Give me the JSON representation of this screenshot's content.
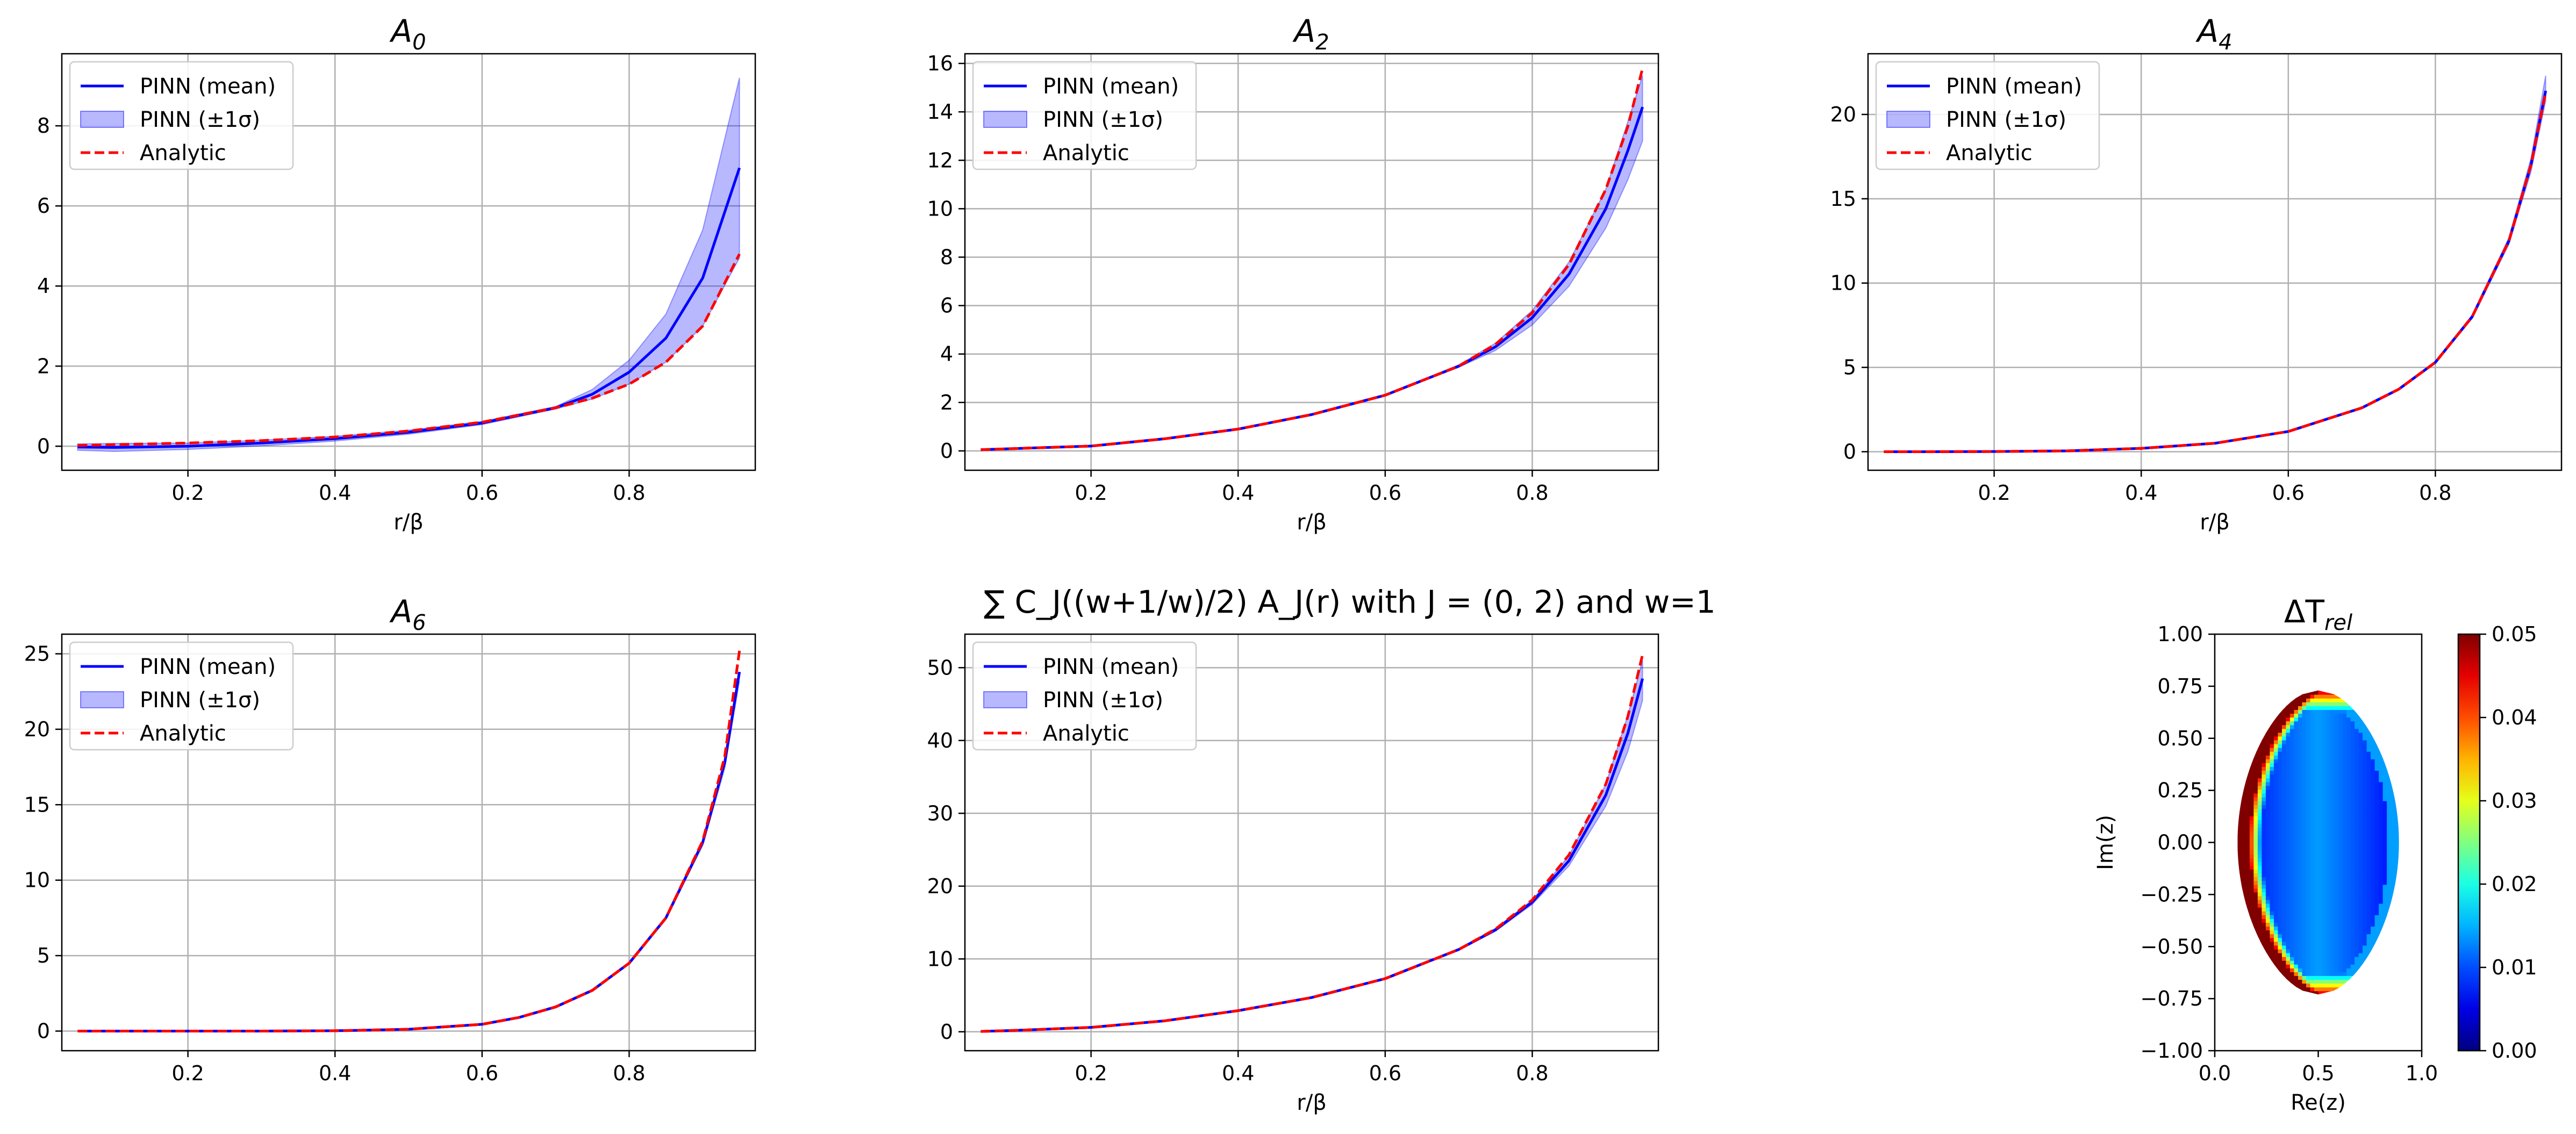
{
  "chart_data": [
    {
      "type": "line",
      "title_base": "A",
      "title_sub": "0",
      "xlabel": "r/β",
      "ylabel": "",
      "xlim": [
        0.0285,
        0.9715
      ],
      "ylim": [
        -0.6,
        9.8
      ],
      "xticks": [
        0.2,
        0.4,
        0.6,
        0.8
      ],
      "xtick_labels": [
        "0.2",
        "0.4",
        "0.6",
        "0.8"
      ],
      "yticks": [
        0,
        2,
        4,
        6,
        8
      ],
      "ytick_labels": [
        "0",
        "2",
        "4",
        "6",
        "8"
      ],
      "grid": true,
      "legend_loc": "upper left",
      "x": [
        0.05,
        0.1,
        0.2,
        0.3,
        0.4,
        0.5,
        0.6,
        0.7,
        0.75,
        0.8,
        0.85,
        0.9,
        0.95
      ],
      "series": [
        {
          "name": "PINN (mean)",
          "kind": "line",
          "color": "#0000ff",
          "dash": "solid",
          "values": [
            -0.02,
            -0.03,
            0.0,
            0.08,
            0.19,
            0.35,
            0.58,
            0.96,
            1.3,
            1.85,
            2.7,
            4.2,
            6.95
          ]
        },
        {
          "name": "PINN (±1σ)",
          "kind": "band",
          "color": "#0000ff",
          "lower": [
            -0.1,
            -0.13,
            -0.08,
            0.01,
            0.13,
            0.3,
            0.54,
            0.93,
            1.18,
            1.55,
            2.1,
            3.0,
            4.7
          ],
          "upper": [
            0.06,
            0.07,
            0.08,
            0.15,
            0.25,
            0.4,
            0.62,
            0.99,
            1.42,
            2.15,
            3.3,
            5.4,
            9.2
          ]
        },
        {
          "name": "Analytic",
          "kind": "line",
          "color": "#ff0000",
          "dash": "dashed",
          "values": [
            0.02,
            0.04,
            0.08,
            0.14,
            0.23,
            0.38,
            0.6,
            0.96,
            1.2,
            1.55,
            2.1,
            3.0,
            4.8
          ]
        }
      ]
    },
    {
      "type": "line",
      "title_base": "A",
      "title_sub": "2",
      "xlabel": "r/β",
      "ylabel": "",
      "xlim": [
        0.0285,
        0.9715
      ],
      "ylim": [
        -0.8,
        16.4
      ],
      "xticks": [
        0.2,
        0.4,
        0.6,
        0.8
      ],
      "xtick_labels": [
        "0.2",
        "0.4",
        "0.6",
        "0.8"
      ],
      "yticks": [
        0,
        2,
        4,
        6,
        8,
        10,
        12,
        14,
        16
      ],
      "ytick_labels": [
        "0",
        "2",
        "4",
        "6",
        "8",
        "10",
        "12",
        "14",
        "16"
      ],
      "grid": true,
      "legend_loc": "upper left",
      "x": [
        0.05,
        0.1,
        0.2,
        0.3,
        0.4,
        0.5,
        0.6,
        0.7,
        0.75,
        0.8,
        0.85,
        0.9,
        0.93,
        0.95
      ],
      "series": [
        {
          "name": "PINN (mean)",
          "kind": "line",
          "color": "#0000ff",
          "dash": "solid",
          "values": [
            0.05,
            0.1,
            0.2,
            0.5,
            0.9,
            1.5,
            2.3,
            3.5,
            4.3,
            5.5,
            7.3,
            10.0,
            12.4,
            14.2
          ]
        },
        {
          "name": "PINN (±1σ)",
          "kind": "band",
          "color": "#0000ff",
          "lower": [
            0.05,
            0.1,
            0.2,
            0.5,
            0.9,
            1.5,
            2.3,
            3.45,
            4.15,
            5.2,
            6.8,
            9.2,
            11.2,
            12.8
          ],
          "upper": [
            0.05,
            0.1,
            0.2,
            0.5,
            0.9,
            1.5,
            2.3,
            3.55,
            4.45,
            5.8,
            7.8,
            10.8,
            13.6,
            15.5
          ]
        },
        {
          "name": "Analytic",
          "kind": "line",
          "color": "#ff0000",
          "dash": "dashed",
          "values": [
            0.05,
            0.1,
            0.2,
            0.5,
            0.9,
            1.5,
            2.3,
            3.5,
            4.4,
            5.7,
            7.7,
            10.8,
            13.4,
            15.8
          ]
        }
      ]
    },
    {
      "type": "line",
      "title_base": "A",
      "title_sub": "4",
      "xlabel": "r/β",
      "ylabel": "",
      "xlim": [
        0.0285,
        0.9715
      ],
      "ylim": [
        -1.1,
        23.6
      ],
      "xticks": [
        0.2,
        0.4,
        0.6,
        0.8
      ],
      "xtick_labels": [
        "0.2",
        "0.4",
        "0.6",
        "0.8"
      ],
      "yticks": [
        0,
        5,
        10,
        15,
        20
      ],
      "ytick_labels": [
        "0",
        "5",
        "10",
        "15",
        "20"
      ],
      "grid": true,
      "legend_loc": "upper left",
      "x": [
        0.05,
        0.1,
        0.2,
        0.3,
        0.4,
        0.5,
        0.6,
        0.7,
        0.75,
        0.8,
        0.85,
        0.9,
        0.93,
        0.95
      ],
      "series": [
        {
          "name": "PINN (mean)",
          "kind": "line",
          "color": "#0000ff",
          "dash": "solid",
          "values": [
            0.0,
            0.0,
            0.01,
            0.05,
            0.2,
            0.5,
            1.2,
            2.6,
            3.7,
            5.3,
            8.0,
            12.5,
            17.0,
            21.4
          ]
        },
        {
          "name": "PINN (±1σ)",
          "kind": "band",
          "color": "#0000ff",
          "lower": [
            0.0,
            0.0,
            0.01,
            0.05,
            0.2,
            0.5,
            1.2,
            2.6,
            3.7,
            5.25,
            7.9,
            12.3,
            16.6,
            20.8
          ],
          "upper": [
            0.0,
            0.0,
            0.01,
            0.05,
            0.2,
            0.5,
            1.2,
            2.6,
            3.7,
            5.35,
            8.1,
            12.7,
            17.4,
            22.3
          ]
        },
        {
          "name": "Analytic",
          "kind": "line",
          "color": "#ff0000",
          "dash": "dashed",
          "values": [
            0.0,
            0.0,
            0.01,
            0.05,
            0.2,
            0.5,
            1.2,
            2.6,
            3.7,
            5.3,
            8.0,
            12.5,
            17.0,
            21.3
          ]
        }
      ]
    },
    {
      "type": "line",
      "title_base": "A",
      "title_sub": "6",
      "xlabel": "",
      "ylabel": "",
      "xlim": [
        0.0285,
        0.9715
      ],
      "ylim": [
        -1.3,
        26.3
      ],
      "xticks": [
        0.2,
        0.4,
        0.6,
        0.8
      ],
      "xtick_labels": [
        "0.2",
        "0.4",
        "0.6",
        "0.8"
      ],
      "yticks": [
        0,
        5,
        10,
        15,
        20,
        25
      ],
      "ytick_labels": [
        "0",
        "5",
        "10",
        "15",
        "20",
        "25"
      ],
      "grid": true,
      "legend_loc": "upper left",
      "x": [
        0.05,
        0.1,
        0.2,
        0.3,
        0.4,
        0.5,
        0.6,
        0.65,
        0.7,
        0.75,
        0.8,
        0.85,
        0.9,
        0.93,
        0.95
      ],
      "series": [
        {
          "name": "PINN (mean)",
          "kind": "line",
          "color": "#0000ff",
          "dash": "solid",
          "values": [
            0.0,
            0.0,
            0.0,
            0.0,
            0.02,
            0.12,
            0.45,
            0.9,
            1.6,
            2.7,
            4.5,
            7.5,
            12.5,
            17.8,
            23.8
          ]
        },
        {
          "name": "PINN (±1σ)",
          "kind": "band",
          "color": "#0000ff",
          "lower": [
            0.0,
            0.0,
            0.0,
            0.0,
            0.02,
            0.12,
            0.45,
            0.9,
            1.6,
            2.7,
            4.45,
            7.4,
            12.3,
            17.4,
            23.2
          ]
        },
        {
          "name": "Analytic",
          "kind": "line",
          "color": "#ff0000",
          "dash": "dashed",
          "values": [
            0.0,
            0.0,
            0.0,
            0.0,
            0.02,
            0.12,
            0.45,
            0.9,
            1.6,
            2.7,
            4.5,
            7.5,
            12.6,
            18.2,
            25.2
          ]
        }
      ]
    },
    {
      "type": "line",
      "title": "∑ C_J((w+1/w)/2) A_J(r) with J = (0, 2) and w=1",
      "xlabel": "r/β",
      "ylabel": "",
      "xlim": [
        0.0285,
        0.9715
      ],
      "ylim": [
        -2.6,
        54.6
      ],
      "xticks": [
        0.2,
        0.4,
        0.6,
        0.8
      ],
      "xtick_labels": [
        "0.2",
        "0.4",
        "0.6",
        "0.8"
      ],
      "yticks": [
        0,
        10,
        20,
        30,
        40,
        50
      ],
      "ytick_labels": [
        "0",
        "10",
        "20",
        "30",
        "40",
        "50"
      ],
      "grid": true,
      "legend_loc": "upper left",
      "x": [
        0.05,
        0.1,
        0.2,
        0.3,
        0.4,
        0.5,
        0.6,
        0.7,
        0.75,
        0.8,
        0.85,
        0.9,
        0.93,
        0.95
      ],
      "series": [
        {
          "name": "PINN (mean)",
          "kind": "line",
          "color": "#0000ff",
          "dash": "solid",
          "values": [
            0.05,
            0.2,
            0.6,
            1.5,
            2.9,
            4.7,
            7.3,
            11.3,
            14.0,
            17.8,
            23.5,
            32.5,
            41.0,
            48.5
          ]
        },
        {
          "name": "PINN (±1σ)",
          "kind": "band",
          "color": "#0000ff",
          "lower": [
            0.05,
            0.2,
            0.6,
            1.5,
            2.9,
            4.7,
            7.3,
            11.2,
            13.8,
            17.5,
            22.8,
            31.0,
            38.5,
            45.5
          ],
          "upper": [
            0.05,
            0.2,
            0.6,
            1.5,
            2.9,
            4.7,
            7.3,
            11.4,
            14.2,
            18.1,
            24.2,
            34.0,
            43.5,
            51.0
          ]
        },
        {
          "name": "Analytic",
          "kind": "line",
          "color": "#ff0000",
          "dash": "dashed",
          "values": [
            0.05,
            0.2,
            0.6,
            1.5,
            2.9,
            4.7,
            7.3,
            11.3,
            14.1,
            18.1,
            24.3,
            34.0,
            43.3,
            51.8
          ]
        }
      ]
    },
    {
      "type": "heatmap",
      "title_base": "ΔT",
      "title_sub": "rel",
      "xlabel": "Re(z)",
      "ylabel": "Im(z)",
      "xlim": [
        0.0,
        1.0
      ],
      "ylim": [
        -1.0,
        1.0
      ],
      "xticks": [
        0.0,
        0.5,
        1.0
      ],
      "xtick_labels": [
        "0.0",
        "0.5",
        "1.0"
      ],
      "yticks": [
        -1.0,
        -0.75,
        -0.5,
        -0.25,
        0.0,
        0.25,
        0.5,
        0.75,
        1.0
      ],
      "ytick_labels": [
        "−1.00",
        "−0.75",
        "−0.50",
        "−0.25",
        "0.00",
        "0.25",
        "0.50",
        "0.75",
        "1.00"
      ],
      "region": {
        "re_min": 0.11,
        "re_max": 0.89,
        "im_half_height": 0.73
      },
      "colorbar": {
        "colormap": "jet",
        "min": 0.0,
        "max": 0.05,
        "ticks": [
          0.0,
          0.01,
          0.02,
          0.03,
          0.04,
          0.05
        ],
        "tick_labels": [
          "0.00",
          "0.01",
          "0.02",
          "0.03",
          "0.04",
          "0.05"
        ]
      }
    }
  ]
}
